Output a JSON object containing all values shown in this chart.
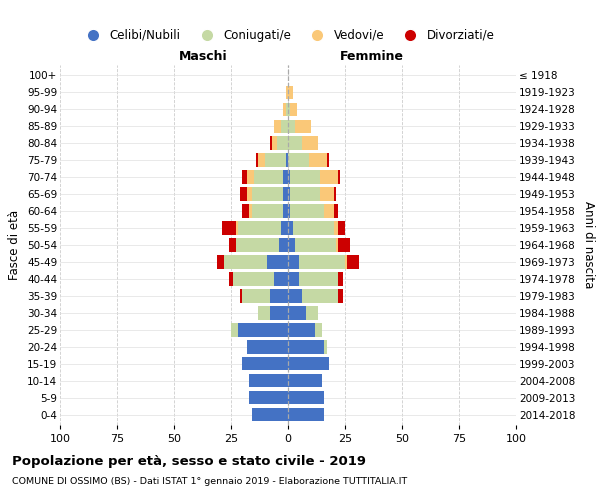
{
  "age_groups": [
    "0-4",
    "5-9",
    "10-14",
    "15-19",
    "20-24",
    "25-29",
    "30-34",
    "35-39",
    "40-44",
    "45-49",
    "50-54",
    "55-59",
    "60-64",
    "65-69",
    "70-74",
    "75-79",
    "80-84",
    "85-89",
    "90-94",
    "95-99",
    "100+"
  ],
  "birth_years": [
    "2014-2018",
    "2009-2013",
    "2004-2008",
    "1999-2003",
    "1994-1998",
    "1989-1993",
    "1984-1988",
    "1979-1983",
    "1974-1978",
    "1969-1973",
    "1964-1968",
    "1959-1963",
    "1954-1958",
    "1949-1953",
    "1944-1948",
    "1939-1943",
    "1934-1938",
    "1929-1933",
    "1924-1928",
    "1919-1923",
    "≤ 1918"
  ],
  "maschi": {
    "celibi": [
      16,
      17,
      17,
      20,
      18,
      22,
      8,
      8,
      6,
      9,
      4,
      3,
      2,
      2,
      2,
      1,
      0,
      0,
      0,
      0,
      0
    ],
    "coniugati": [
      0,
      0,
      0,
      0,
      0,
      3,
      5,
      12,
      18,
      19,
      19,
      19,
      14,
      14,
      13,
      9,
      5,
      3,
      1,
      0,
      0
    ],
    "vedovi": [
      0,
      0,
      0,
      0,
      0,
      0,
      0,
      0,
      0,
      0,
      0,
      1,
      1,
      2,
      3,
      3,
      2,
      3,
      1,
      1,
      0
    ],
    "divorziati": [
      0,
      0,
      0,
      0,
      0,
      0,
      0,
      1,
      2,
      3,
      3,
      6,
      3,
      3,
      2,
      1,
      1,
      0,
      0,
      0,
      0
    ]
  },
  "femmine": {
    "nubili": [
      16,
      16,
      15,
      18,
      16,
      12,
      8,
      6,
      5,
      5,
      3,
      2,
      1,
      1,
      1,
      0,
      0,
      0,
      0,
      0,
      0
    ],
    "coniugate": [
      0,
      0,
      0,
      0,
      1,
      3,
      5,
      16,
      17,
      20,
      18,
      18,
      15,
      13,
      13,
      9,
      6,
      3,
      1,
      0,
      0
    ],
    "vedove": [
      0,
      0,
      0,
      0,
      0,
      0,
      0,
      0,
      0,
      1,
      1,
      2,
      4,
      6,
      8,
      8,
      7,
      7,
      3,
      2,
      0
    ],
    "divorziate": [
      0,
      0,
      0,
      0,
      0,
      0,
      0,
      2,
      2,
      5,
      5,
      3,
      2,
      1,
      1,
      1,
      0,
      0,
      0,
      0,
      0
    ]
  },
  "colors": {
    "celibi": "#4472C4",
    "coniugati": "#C5D9A4",
    "vedovi": "#FAC878",
    "divorziati": "#CC0000"
  },
  "legend_labels": [
    "Celibi/Nubili",
    "Coniugati/e",
    "Vedovi/e",
    "Divorziati/e"
  ],
  "title": "Popolazione per età, sesso e stato civile - 2019",
  "subtitle": "COMUNE DI OSSIMO (BS) - Dati ISTAT 1° gennaio 2019 - Elaborazione TUTTITALIA.IT",
  "xlabel_left": "Maschi",
  "xlabel_right": "Femmine",
  "ylabel_left": "Fasce di età",
  "ylabel_right": "Anni di nascita",
  "xlim": [
    -100,
    100
  ],
  "xticks": [
    -100,
    -75,
    -50,
    -25,
    0,
    25,
    50,
    75,
    100
  ],
  "xticklabels": [
    "100",
    "75",
    "50",
    "25",
    "0",
    "25",
    "50",
    "75",
    "100"
  ],
  "bg_color": "#ffffff",
  "grid_color": "#cccccc"
}
